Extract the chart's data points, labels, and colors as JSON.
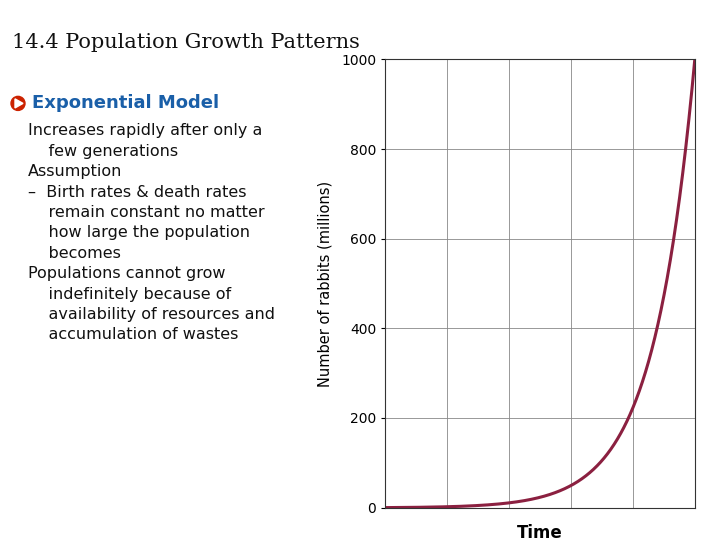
{
  "title": "14.4 Population Growth Patterns",
  "title_fontsize": 15,
  "section_title": "Exponential Model",
  "section_title_color": "#1a5fa8",
  "section_title_fontsize": 13,
  "bullet_color": "#cc2200",
  "bullet_texts": [
    "Increases rapidly after only a\n    few generations\nAssumption\n–  Birth rates & death rates\n    remain constant no matter\n    how large the population\n    becomes\nPopulations cannot grow\n    indefinitely because of\n    availability of resources and\n    accumulation of wastes"
  ],
  "bullet_fontsize": 11.5,
  "text_color": "#111111",
  "graph_bg_color": "#ffffff",
  "content_bg_color": "#ffffff",
  "curve_color": "#8b2040",
  "curve_linewidth": 2.2,
  "ylabel": "Number of rabbits (millions)",
  "xlabel": "Time",
  "ylim": [
    0,
    1000
  ],
  "yticks": [
    0,
    200,
    400,
    600,
    800,
    1000
  ],
  "ylabel_fontsize": 10.5,
  "xlabel_fontsize": 12,
  "tick_fontsize": 10,
  "header_teal": "#1a8899",
  "header_white_bg": "#e8e8e8",
  "grid_color": "#888888"
}
